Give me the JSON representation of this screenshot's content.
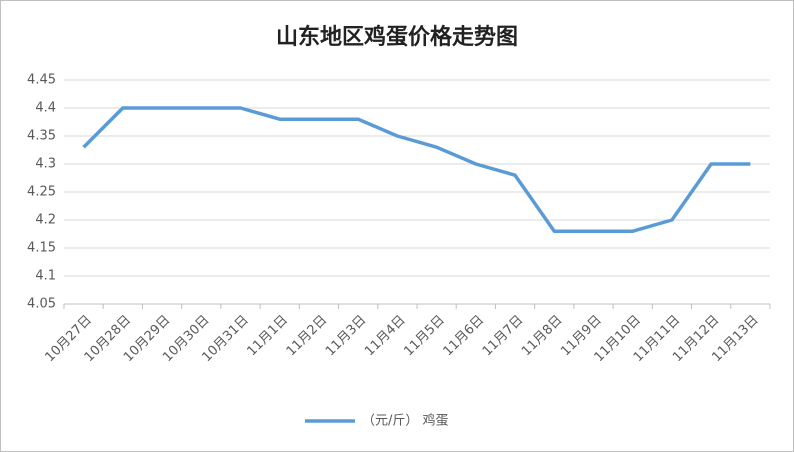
{
  "chart_data": {
    "type": "line",
    "title": "山东地区鸡蛋价格走势图",
    "categories": [
      "10月27日",
      "10月28日",
      "10月29日",
      "10月30日",
      "10月31日",
      "11月1日",
      "11月2日",
      "11月3日",
      "11月4日",
      "11月5日",
      "11月6日",
      "11月7日",
      "11月8日",
      "11月9日",
      "11月10日",
      "11月11日",
      "11月12日",
      "11月13日"
    ],
    "series": [
      {
        "name": "（元/斤） 鸡蛋",
        "color": "#5b9bd5",
        "values": [
          4.33,
          4.4,
          4.4,
          4.4,
          4.4,
          4.38,
          4.38,
          4.38,
          4.35,
          4.33,
          4.3,
          4.28,
          4.18,
          4.18,
          4.18,
          4.2,
          4.3,
          4.3
        ]
      }
    ],
    "ylim": [
      4.05,
      4.45
    ],
    "yticks": [
      4.05,
      4.1,
      4.15,
      4.2,
      4.25,
      4.3,
      4.35,
      4.4,
      4.45
    ],
    "grid": true,
    "legend": "bottom"
  }
}
